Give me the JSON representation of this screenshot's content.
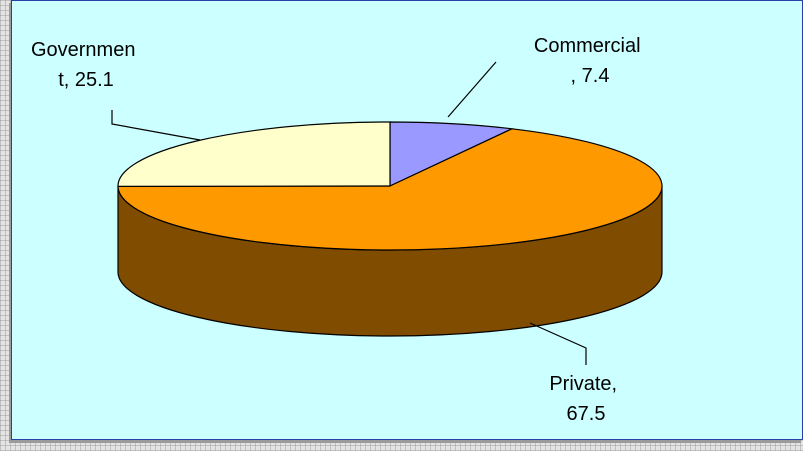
{
  "chart_data": {
    "type": "pie",
    "title": "",
    "slices": [
      {
        "label": "Commercial",
        "value": 7.4,
        "color": "#9999ff",
        "label_lines": [
          "Commercial",
          ", 7.4"
        ]
      },
      {
        "label": "Private",
        "value": 67.5,
        "color": "#ff9900",
        "label_lines": [
          "Private,",
          "67.5"
        ]
      },
      {
        "label": "Government",
        "value": 25.1,
        "color": "#ffffcc",
        "label_lines": [
          "Governmen",
          "t, 25.1"
        ]
      }
    ],
    "side_color": "#7f4c00",
    "legend": "none"
  }
}
